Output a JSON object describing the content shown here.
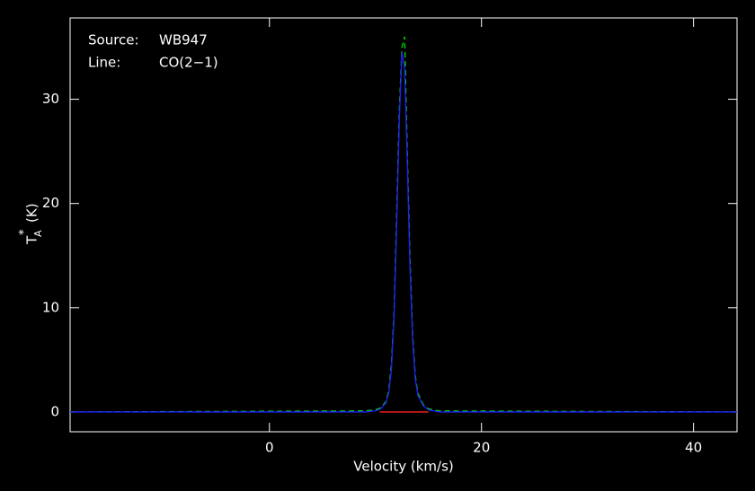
{
  "chart_data": {
    "type": "line",
    "annotations": [
      {
        "key": "Source:",
        "value": "WB947"
      },
      {
        "key": "Line:",
        "value": "CO(2−1)"
      }
    ],
    "x_label": "Velocity (km/s)",
    "y_label": {
      "main": "T",
      "sub": "A",
      "sup": "*",
      "unit": "(K)"
    },
    "xlim": [
      -18.8,
      44.1
    ],
    "ylim": [
      -1.9,
      37.8
    ],
    "xticks": [
      0,
      20,
      40
    ],
    "yticks": [
      0,
      10,
      20,
      30
    ],
    "axis_color": "#ffffff",
    "background": "#000000",
    "series": [
      {
        "color": "#00dd00",
        "dashed": true,
        "x": [
          -18.8,
          9,
          10,
          10.5,
          11,
          11.25,
          11.5,
          11.75,
          12,
          12.25,
          12.5,
          12.75,
          13,
          13.25,
          13.5,
          13.75,
          14,
          14.5,
          15,
          16,
          44.1
        ],
        "values": [
          0,
          0.1,
          0.2,
          0.4,
          1.0,
          2,
          4.5,
          9.5,
          19,
          29,
          35,
          36,
          25,
          15,
          7.5,
          3.5,
          1.8,
          0.7,
          0.3,
          0.1,
          0
        ]
      },
      {
        "color": "#2020ff",
        "dashed": false,
        "x": [
          -18.8,
          9,
          10,
          10.5,
          11,
          11.25,
          11.5,
          11.75,
          12,
          12.25,
          12.5,
          12.75,
          13,
          13.25,
          13.5,
          13.75,
          14,
          14.5,
          15,
          16,
          44.1
        ],
        "values": [
          0,
          0,
          0.1,
          0.3,
          0.9,
          1.8,
          4,
          9,
          18,
          28,
          34.5,
          33,
          24,
          14,
          7,
          3.2,
          1.6,
          0.6,
          0.2,
          0,
          0
        ]
      },
      {
        "color": "#ff2020",
        "dashed": false,
        "x": [
          10.4,
          15
        ],
        "values": [
          0,
          0
        ]
      }
    ]
  }
}
